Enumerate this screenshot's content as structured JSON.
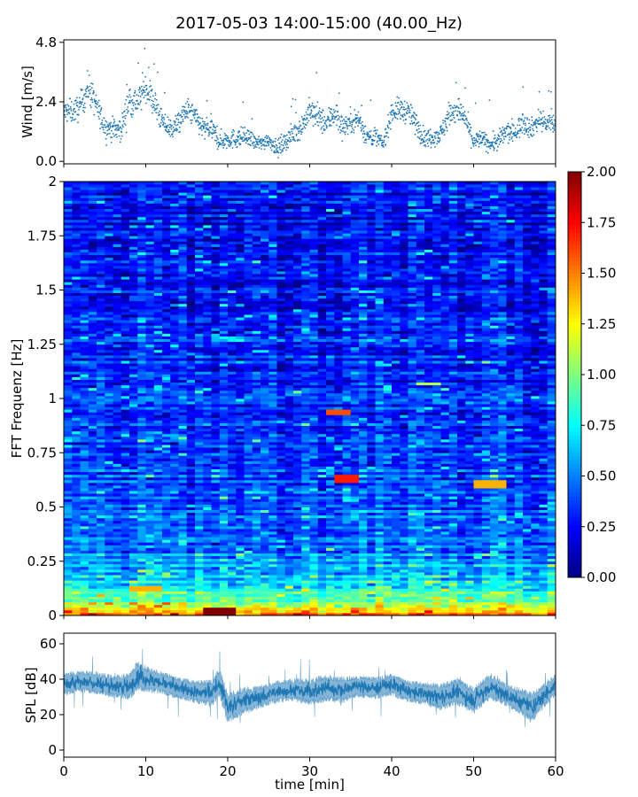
{
  "title": "2017-05-03 14:00-15:00 (40.00_Hz)",
  "chart_data": [
    {
      "id": "wind",
      "type": "scatter",
      "title": "",
      "xlabel": "",
      "ylabel": "Wind [m/s]",
      "xlim": [
        0,
        60
      ],
      "ylim": [
        -0.1,
        4.9
      ],
      "yticks": [
        0.0,
        2.4,
        4.8
      ],
      "ytick_labels": [
        "0.0",
        "2.4",
        "4.8"
      ],
      "color": "#1f77b4",
      "envelope": {
        "x": [
          0,
          1,
          2,
          3,
          4,
          5,
          6,
          7,
          8,
          9,
          10,
          11,
          12,
          13,
          14,
          15,
          16,
          17,
          18,
          19,
          20,
          21,
          22,
          23,
          24,
          25,
          26,
          27,
          28,
          29,
          30,
          31,
          32,
          33,
          34,
          35,
          36,
          37,
          38,
          39,
          40,
          41,
          42,
          43,
          44,
          45,
          46,
          47,
          48,
          49,
          50,
          51,
          52,
          53,
          54,
          55,
          56,
          57,
          58,
          59,
          60
        ],
        "mean": [
          2.0,
          2.0,
          2.2,
          3.0,
          2.2,
          1.4,
          1.3,
          1.3,
          2.5,
          2.4,
          3.0,
          2.4,
          1.6,
          1.3,
          1.5,
          2.1,
          1.8,
          1.3,
          1.3,
          0.8,
          0.9,
          0.9,
          1.0,
          0.8,
          0.7,
          0.9,
          0.5,
          0.8,
          1.1,
          1.4,
          2.0,
          1.8,
          1.5,
          2.0,
          1.4,
          1.6,
          1.7,
          1.0,
          1.0,
          0.7,
          2.0,
          2.1,
          2.0,
          1.5,
          0.9,
          1.0,
          1.1,
          1.9,
          2.1,
          1.7,
          0.8,
          0.9,
          0.7,
          0.8,
          1.2,
          1.1,
          1.6,
          1.3,
          1.7,
          1.5,
          1.5
        ],
        "spread": [
          0.6,
          0.6,
          0.7,
          0.8,
          0.7,
          0.6,
          0.6,
          0.6,
          0.9,
          0.8,
          0.8,
          0.8,
          0.6,
          0.6,
          0.6,
          0.6,
          0.6,
          0.6,
          0.6,
          0.5,
          0.5,
          0.5,
          0.5,
          0.4,
          0.4,
          0.4,
          0.4,
          0.5,
          0.5,
          0.6,
          0.7,
          0.7,
          0.6,
          0.8,
          0.6,
          0.6,
          0.6,
          0.5,
          0.5,
          0.4,
          0.6,
          0.6,
          0.6,
          0.6,
          0.5,
          0.5,
          0.5,
          0.7,
          0.7,
          0.6,
          0.5,
          0.5,
          0.4,
          0.5,
          0.6,
          0.5,
          0.6,
          0.5,
          0.6,
          0.5,
          0.5
        ]
      }
    },
    {
      "id": "spectrogram",
      "type": "heatmap",
      "title": "",
      "xlabel": "",
      "ylabel": "FFT Frequenz [Hz]",
      "xlim": [
        0,
        60
      ],
      "ylim": [
        0,
        2
      ],
      "yticks": [
        0,
        0.25,
        0.5,
        0.75,
        1,
        1.25,
        1.5,
        1.75,
        2
      ],
      "ytick_labels": [
        "0",
        "0.25",
        "0.5",
        "0.75",
        "1",
        "1.25",
        "1.5",
        "1.75",
        "2"
      ],
      "colormap": "jet",
      "colorbar": {
        "range": [
          0,
          2
        ],
        "ticks": [
          0.0,
          0.25,
          0.5,
          0.75,
          1.0,
          1.25,
          1.5,
          1.75,
          2.0
        ],
        "tick_labels": [
          "0.00",
          "0.25",
          "0.50",
          "0.75",
          "1.00",
          "1.25",
          "1.50",
          "1.75",
          "2.00"
        ]
      },
      "profile": {
        "freq": [
          0.0,
          0.02,
          0.05,
          0.08,
          0.12,
          0.16,
          0.2,
          0.25,
          0.3,
          0.4,
          0.5,
          0.6,
          0.75,
          1.0,
          1.25,
          1.5,
          1.75,
          2.0
        ],
        "level": [
          1.8,
          1.4,
          1.1,
          0.95,
          0.85,
          0.7,
          0.62,
          0.58,
          0.48,
          0.45,
          0.42,
          0.4,
          0.36,
          0.32,
          0.3,
          0.28,
          0.26,
          0.26
        ]
      },
      "hotspots": [
        {
          "t": [
            33.0,
            36.0
          ],
          "f": [
            0.61,
            0.65
          ],
          "level": 1.7
        },
        {
          "t": [
            32.5,
            35.0
          ],
          "f": [
            0.92,
            0.95
          ],
          "level": 1.6
        },
        {
          "t": [
            50.0,
            53.5
          ],
          "f": [
            0.59,
            0.62
          ],
          "level": 1.4
        },
        {
          "t": [
            43.0,
            46.0
          ],
          "f": [
            1.06,
            1.08
          ],
          "level": 1.1
        },
        {
          "t": [
            17.0,
            21.0
          ],
          "f": [
            0.0,
            0.04
          ],
          "level": 2.0
        },
        {
          "t": [
            8.0,
            12.0
          ],
          "f": [
            0.11,
            0.14
          ],
          "level": 1.4
        }
      ]
    },
    {
      "id": "spl",
      "type": "line",
      "title": "",
      "xlabel": "time [min]",
      "ylabel": "SPL [dB]",
      "xlim": [
        0,
        60
      ],
      "ylim": [
        -4,
        66
      ],
      "yticks": [
        0,
        20,
        40,
        60
      ],
      "ytick_labels": [
        "0",
        "20",
        "40",
        "60"
      ],
      "xticks": [
        0,
        10,
        20,
        30,
        40,
        50,
        60
      ],
      "xtick_labels": [
        "0",
        "10",
        "20",
        "30",
        "40",
        "50",
        "60"
      ],
      "color": "#1f77b4",
      "envelope": {
        "x": [
          0,
          2,
          4,
          6,
          8,
          9,
          10,
          12,
          14,
          16,
          18,
          19,
          20,
          22,
          24,
          26,
          28,
          30,
          32,
          34,
          36,
          38,
          40,
          42,
          44,
          46,
          48,
          50,
          52,
          54,
          56,
          57,
          58,
          60
        ],
        "mean": [
          37,
          39,
          38,
          36,
          36,
          42,
          40,
          38,
          35,
          33,
          32,
          38,
          24,
          28,
          30,
          33,
          34,
          33,
          35,
          34,
          36,
          35,
          37,
          33,
          32,
          30,
          33,
          28,
          36,
          31,
          27,
          24,
          28,
          37
        ],
        "spread": [
          5,
          5,
          5,
          5,
          6,
          7,
          6,
          5,
          5,
          5,
          6,
          7,
          7,
          6,
          5,
          5,
          5,
          6,
          6,
          6,
          5,
          5,
          5,
          5,
          5,
          6,
          6,
          6,
          6,
          5,
          6,
          7,
          6,
          5
        ]
      }
    }
  ]
}
